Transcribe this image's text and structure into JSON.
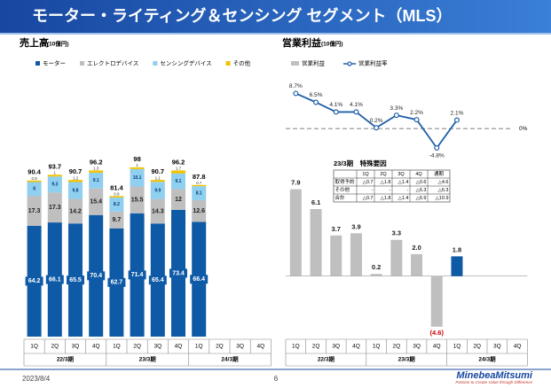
{
  "title": "モーター・ライティング＆センシング セグメント（MLS）",
  "chart_data": [
    {
      "type": "stacked_bar",
      "title": "売上高",
      "unit": "(10億円)",
      "categories": [
        "1Q",
        "2Q",
        "3Q",
        "4Q",
        "1Q",
        "2Q",
        "3Q",
        "4Q",
        "1Q",
        "2Q",
        "3Q",
        "4Q"
      ],
      "group_labels": [
        "22/3期",
        "23/3期",
        "24/3期"
      ],
      "ylim": [
        0,
        100
      ],
      "series": [
        {
          "name": "モーター",
          "color": "#0e5aa7",
          "values": [
            64.2,
            66.1,
            65.5,
            70.4,
            62.7,
            71.4,
            65.4,
            73.4,
            66.4,
            null,
            null,
            null
          ]
        },
        {
          "name": "エレクトロデバイス",
          "color": "#bfbfbf",
          "values": [
            17.3,
            17.3,
            14.2,
            15.4,
            9.7,
            15.5,
            14.3,
            12.0,
            12.6,
            null,
            null,
            null
          ]
        },
        {
          "name": "センシングデバイス",
          "color": "#8fcff0",
          "values": [
            8.0,
            9.3,
            9.8,
            9.1,
            8.2,
            10.1,
            9.9,
            9.1,
            8.1,
            null,
            null,
            null
          ]
        },
        {
          "name": "その他",
          "color": "#f2c200",
          "values": [
            0.9,
            1.0,
            1.2,
            1.3,
            0.8,
            1.0,
            1.1,
            1.7,
            0.7,
            null,
            null,
            null
          ]
        }
      ],
      "totals": [
        90.4,
        93.7,
        90.7,
        96.2,
        81.4,
        98.0,
        90.7,
        96.2,
        87.8,
        null,
        null,
        null
      ]
    },
    {
      "type": "bar",
      "title": "営業利益",
      "unit": "(10億円)",
      "categories": [
        "1Q",
        "2Q",
        "3Q",
        "4Q",
        "1Q",
        "2Q",
        "3Q",
        "4Q",
        "1Q",
        "2Q",
        "3Q",
        "4Q"
      ],
      "group_labels": [
        "22/3期",
        "23/3期",
        "24/3期"
      ],
      "ylim": [
        -5.5,
        9
      ],
      "series": [
        {
          "name": "営業利益",
          "values": [
            7.9,
            6.1,
            3.7,
            3.9,
            0.2,
            3.3,
            2.0,
            -4.6,
            1.8,
            null,
            null,
            null
          ],
          "value_labels": [
            "7.9",
            "6.1",
            "3.7",
            "3.9",
            "0.2",
            "3.3",
            "2.0",
            "(4.6)",
            "1.8",
            null,
            null,
            null
          ],
          "colors": [
            "#bfbfbf",
            "#bfbfbf",
            "#bfbfbf",
            "#bfbfbf",
            "#bfbfbf",
            "#bfbfbf",
            "#bfbfbf",
            "#bfbfbf",
            "#0e5aa7",
            null,
            null,
            null
          ]
        }
      ]
    },
    {
      "type": "line",
      "categories": [
        "1Q",
        "2Q",
        "3Q",
        "4Q",
        "1Q",
        "2Q",
        "3Q",
        "4Q",
        "1Q",
        "2Q",
        "3Q",
        "4Q"
      ],
      "ylim": [
        -7,
        11
      ],
      "yticks": [
        {
          "value": 0,
          "label": "0%"
        }
      ],
      "series": [
        {
          "name": "営業利益率",
          "color": "#1f5fa8",
          "values": [
            8.7,
            6.5,
            4.1,
            4.1,
            0.2,
            3.3,
            2.2,
            -4.8,
            2.1,
            null,
            null,
            null
          ],
          "value_labels": [
            "8.7%",
            "6.5%",
            "4.1%",
            "4.1%",
            "0.2%",
            "3.3%",
            "2.2%",
            "-4.8%",
            "2.1%",
            null,
            null,
            null
          ]
        }
      ]
    }
  ],
  "table": {
    "title": "23/3期　特殊要因",
    "header": [
      "1Q",
      "2Q",
      "3Q",
      "4Q",
      "通期"
    ],
    "rows": [
      [
        "取得予約",
        "△0.7",
        "△1.8",
        "△1.4",
        "△0.6",
        "△4.6"
      ],
      [
        "その他",
        "-",
        "-",
        "-",
        "△6.3",
        "△6.3"
      ],
      [
        "合計",
        "△0.7",
        "△1.8",
        "△1.4",
        "△6.9",
        "△10.9"
      ]
    ]
  },
  "footer": {
    "date": "2023/8/4",
    "page": "6",
    "logo": "MinebeaMitsumi",
    "tagline": "Passion to Create Value through Difference"
  }
}
